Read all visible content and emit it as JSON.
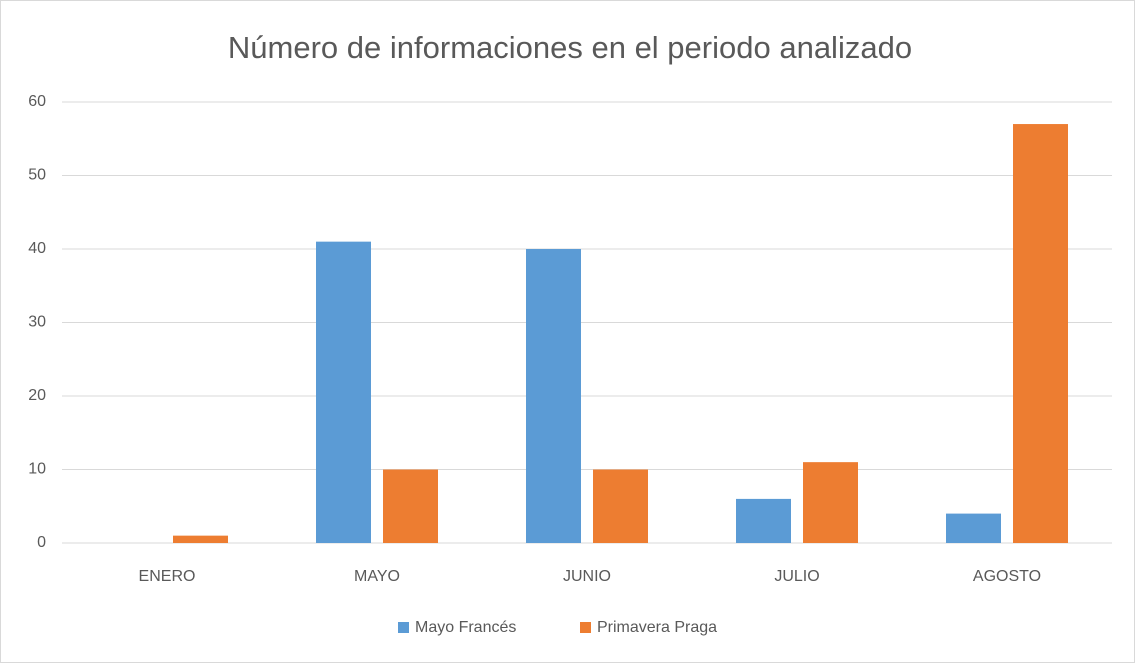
{
  "chart_data": {
    "type": "bar",
    "title": "Número de informaciones en el periodo analizado",
    "categories": [
      "ENERO",
      "MAYO",
      "JUNIO",
      "JULIO",
      "AGOSTO"
    ],
    "series": [
      {
        "name": "Mayo Francés",
        "color": "#5b9bd5",
        "values": [
          0,
          41,
          40,
          6,
          4
        ]
      },
      {
        "name": "Primavera Praga",
        "color": "#ed7d31",
        "values": [
          1,
          10,
          10,
          11,
          57
        ]
      }
    ],
    "ylim": [
      0,
      60
    ],
    "yticks": [
      0,
      10,
      20,
      30,
      40,
      50,
      60
    ],
    "grid": true,
    "legend": "bottom"
  }
}
